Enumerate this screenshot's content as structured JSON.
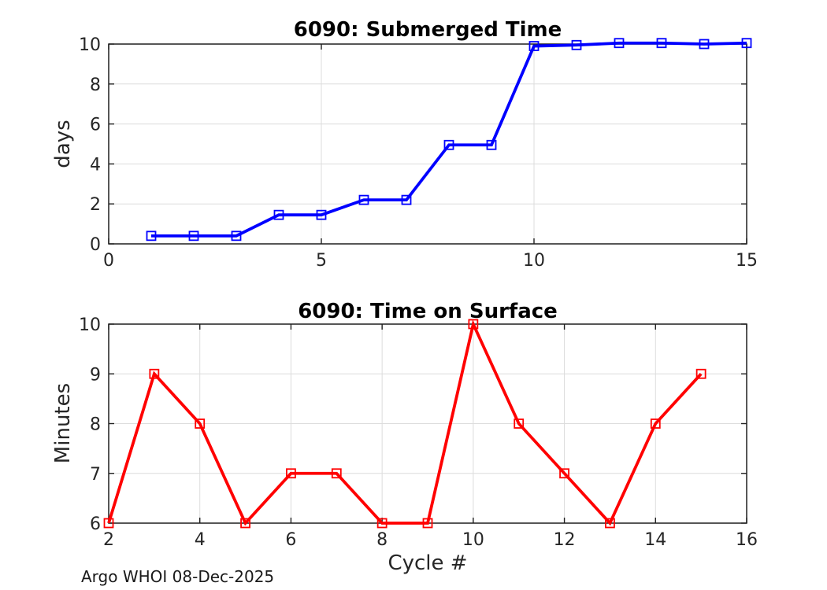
{
  "figure": {
    "footer": "Argo WHOI 08-Dec-2025"
  },
  "chart_data": [
    {
      "type": "line",
      "title": "6090: Submerged Time",
      "xlabel": "",
      "ylabel": "days",
      "x": [
        1,
        2,
        3,
        4,
        5,
        6,
        7,
        8,
        9,
        10,
        11,
        12,
        13,
        14,
        15
      ],
      "y": [
        0.4,
        0.4,
        0.4,
        1.45,
        1.45,
        2.2,
        2.2,
        4.95,
        4.95,
        9.9,
        9.95,
        10.05,
        10.05,
        10.0,
        10.05
      ],
      "xlim": [
        0,
        15
      ],
      "ylim": [
        0,
        10
      ],
      "xticks": [
        0,
        5,
        10,
        15
      ],
      "yticks": [
        0,
        2,
        4,
        6,
        8,
        10
      ],
      "line_color": "#0000FF",
      "marker": "open-square",
      "grid": true,
      "legend": "none"
    },
    {
      "type": "line",
      "title": "6090: Time on Surface",
      "xlabel": "Cycle #",
      "ylabel": "Minutes",
      "x": [
        2,
        3,
        4,
        5,
        6,
        7,
        8,
        9,
        10,
        11,
        12,
        13,
        14,
        15
      ],
      "y": [
        6,
        9,
        8,
        6,
        7,
        7,
        6,
        6,
        10,
        8,
        7,
        6,
        8,
        9
      ],
      "xlim": [
        2,
        16
      ],
      "ylim": [
        6,
        10
      ],
      "xticks": [
        2,
        4,
        6,
        8,
        10,
        12,
        14,
        16
      ],
      "yticks": [
        6,
        7,
        8,
        9,
        10
      ],
      "line_color": "#FF0000",
      "marker": "open-square",
      "grid": true,
      "legend": "none"
    }
  ]
}
